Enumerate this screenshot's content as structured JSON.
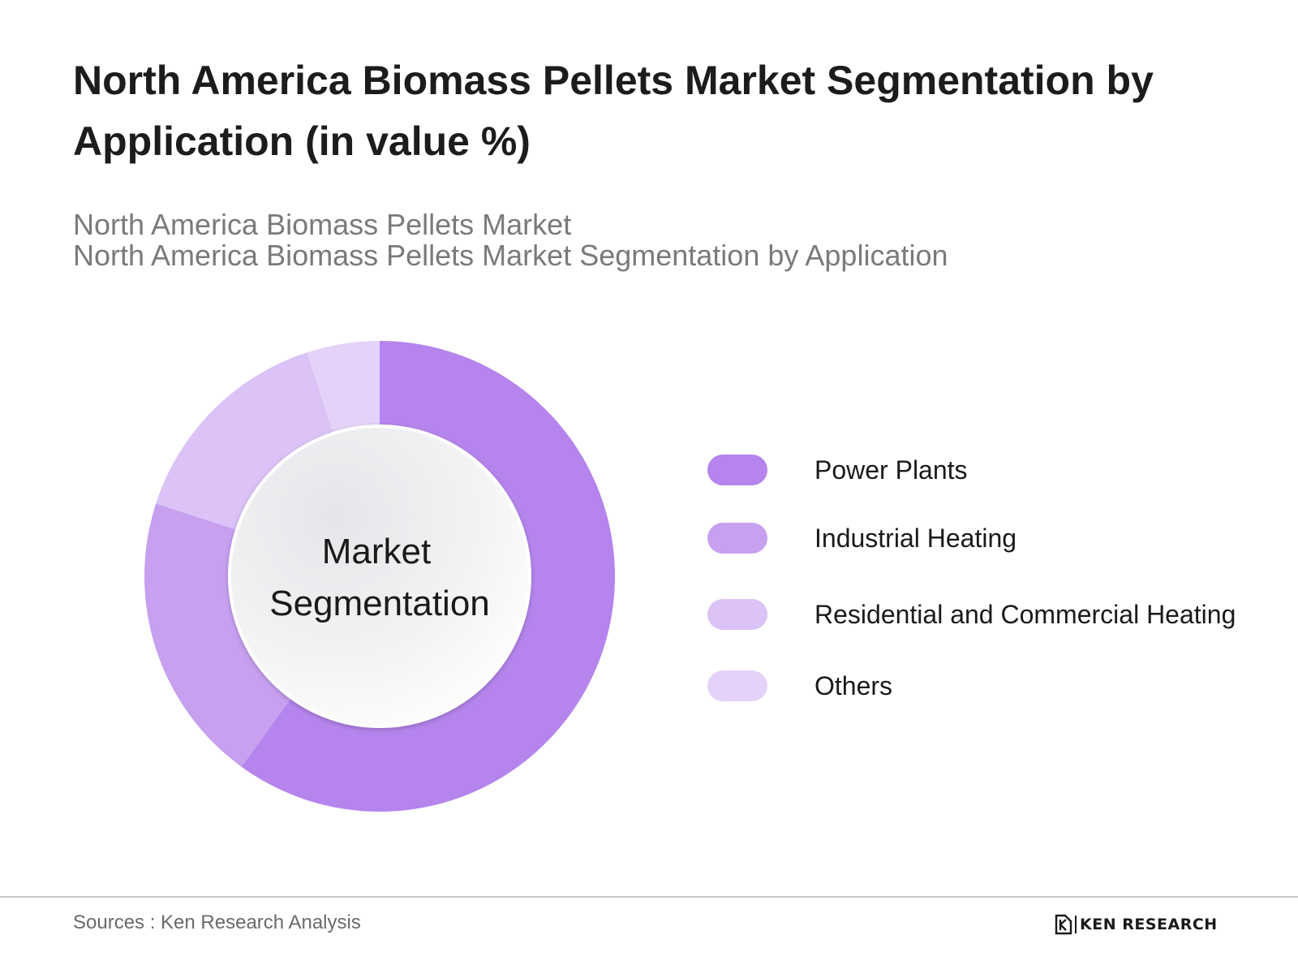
{
  "title": "North America Biomass Pellets Market Segmentation by Application (in value %)",
  "subtitle_line1": "North America Biomass Pellets Market",
  "subtitle_line2": "North America Biomass Pellets Market Segmentation by Application",
  "center_label_line1": "Market",
  "center_label_line2": "Segmentation",
  "source": "Sources : Ken Research Analysis",
  "logo_text": "KEN RESEARCH",
  "chart_data": {
    "type": "pie",
    "style": "donut",
    "title": "North America Biomass Pellets Market Segmentation by Application (in value %)",
    "categories": [
      "Power Plants",
      "Industrial Heating",
      "Residential and Commercial Heating",
      "Others"
    ],
    "values": [
      60,
      20,
      15,
      5
    ],
    "colors": [
      "#b585ed",
      "#c7a0f0",
      "#dbc2f7",
      "#e5d2f8"
    ],
    "legend_position": "right",
    "data_labels_shown": false
  }
}
